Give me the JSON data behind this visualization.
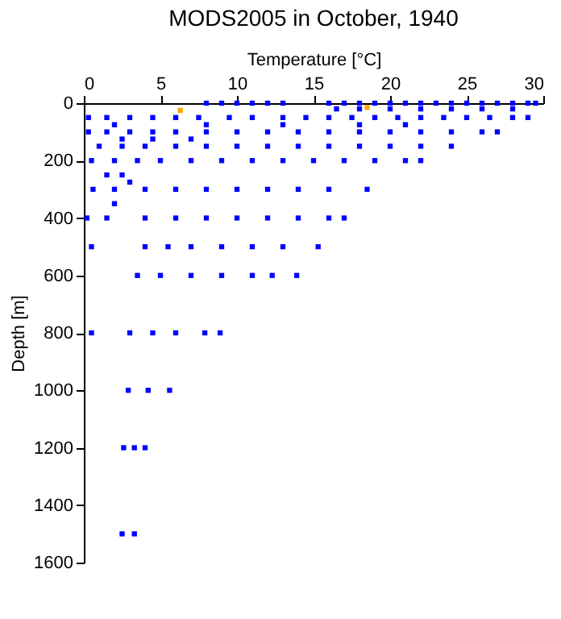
{
  "chart_data": {
    "type": "scatter",
    "title": "MODS2005 in October, 1940",
    "xlabel": "Temperature [°C]",
    "ylabel": "Depth [m]",
    "xlim": [
      0,
      30
    ],
    "xticks": [
      0,
      5,
      10,
      15,
      20,
      25,
      30
    ],
    "ylim": [
      1600,
      0
    ],
    "yticks": [
      0,
      200,
      400,
      600,
      800,
      1000,
      1200,
      1400,
      1600
    ],
    "grid": false,
    "marker": "square",
    "series": [
      {
        "color": "#0000ff",
        "x": [
          8,
          9,
          10,
          11,
          12,
          13,
          16,
          17,
          18,
          19,
          20,
          21,
          22,
          23,
          24,
          25,
          26,
          27,
          28,
          29,
          29.5,
          16.5,
          18,
          20,
          22,
          24,
          26,
          28,
          0.3,
          1.5,
          3,
          4.5,
          6,
          7.5,
          9.5,
          11,
          13,
          14.5,
          16,
          17.5,
          19,
          20.5,
          22,
          23.5,
          25,
          26.5,
          28,
          29,
          2,
          8,
          13,
          18,
          21,
          0.3,
          1.5,
          3,
          4.5,
          6,
          8,
          10,
          12,
          14,
          16,
          18,
          20,
          22,
          24,
          26,
          27,
          1,
          2.5,
          4,
          6,
          8,
          10,
          12,
          14,
          16,
          18,
          20,
          22,
          24,
          0.5,
          2,
          3.5,
          5,
          7,
          9,
          11,
          13,
          15,
          17,
          19,
          21,
          22,
          0.6,
          2,
          4,
          6,
          8,
          10,
          12,
          14,
          16,
          18.5,
          0.2,
          1.5,
          4,
          6,
          8,
          10,
          12,
          14,
          16,
          17,
          0.5,
          4,
          5.5,
          7,
          9,
          11,
          13,
          15.3,
          3.5,
          5,
          7,
          9,
          11,
          12.3,
          13.9,
          0.5,
          3,
          4.5,
          6,
          7.9,
          8.9,
          2.9,
          4.2,
          5.6,
          2.6,
          3.3,
          4,
          2.5,
          3.3,
          2.5,
          4.5,
          7,
          1.5,
          2.5,
          3,
          2
        ],
        "values": [
          0,
          0,
          0,
          0,
          0,
          0,
          0,
          0,
          0,
          0,
          0,
          0,
          0,
          0,
          0,
          0,
          0,
          0,
          0,
          0,
          0,
          20,
          20,
          20,
          20,
          20,
          20,
          20,
          50,
          50,
          50,
          50,
          50,
          50,
          50,
          50,
          50,
          50,
          50,
          50,
          50,
          50,
          50,
          50,
          50,
          50,
          50,
          50,
          75,
          75,
          75,
          75,
          75,
          100,
          100,
          100,
          100,
          100,
          100,
          100,
          100,
          100,
          100,
          100,
          100,
          100,
          100,
          100,
          100,
          150,
          150,
          150,
          150,
          150,
          150,
          150,
          150,
          150,
          150,
          150,
          150,
          150,
          200,
          200,
          200,
          200,
          200,
          200,
          200,
          200,
          200,
          200,
          200,
          200,
          200,
          300,
          300,
          300,
          300,
          300,
          300,
          300,
          300,
          300,
          300,
          400,
          400,
          400,
          400,
          400,
          400,
          400,
          400,
          400,
          400,
          500,
          500,
          500,
          500,
          500,
          500,
          500,
          500,
          600,
          600,
          600,
          600,
          600,
          600,
          600,
          800,
          800,
          800,
          800,
          800,
          800,
          1000,
          1000,
          1000,
          1200,
          1200,
          1200,
          1500,
          1500,
          125,
          125,
          125,
          250,
          250,
          275,
          350
        ]
      },
      {
        "color": "#ffa500",
        "x": [
          6.3,
          18.5
        ],
        "values": [
          25,
          15
        ]
      }
    ]
  }
}
